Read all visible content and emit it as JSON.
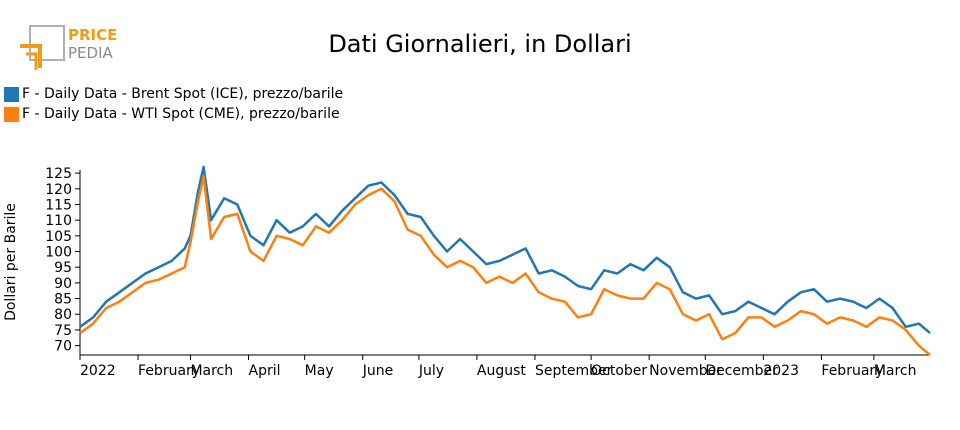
{
  "logo": {
    "line1": "PRICE",
    "line2": "PEDIA",
    "accent_color": "#f39c12",
    "gray_color": "#8a8a8a"
  },
  "title": "Dati Giornalieri, in Dollari",
  "chart_data": {
    "type": "line",
    "title": "Dati Giornalieri, in Dollari",
    "xlabel": "",
    "ylabel": "Dollari per Barile",
    "ylim": [
      67,
      126
    ],
    "yticks": [
      70,
      75,
      80,
      85,
      90,
      95,
      100,
      105,
      110,
      115,
      120,
      125
    ],
    "xlim": [
      "2022-01-01",
      "2023-03-31"
    ],
    "xticks": [
      {
        "date": "2022-01-01",
        "label": "2022"
      },
      {
        "date": "2022-02-01",
        "label": "February"
      },
      {
        "date": "2022-03-01",
        "label": "March"
      },
      {
        "date": "2022-04-01",
        "label": "April"
      },
      {
        "date": "2022-05-01",
        "label": "May"
      },
      {
        "date": "2022-06-01",
        "label": "June"
      },
      {
        "date": "2022-07-01",
        "label": "July"
      },
      {
        "date": "2022-08-01",
        "label": "August"
      },
      {
        "date": "2022-09-01",
        "label": "September"
      },
      {
        "date": "2022-10-01",
        "label": "October"
      },
      {
        "date": "2022-11-01",
        "label": "November"
      },
      {
        "date": "2022-12-01",
        "label": "December"
      },
      {
        "date": "2023-01-01",
        "label": "2023"
      },
      {
        "date": "2023-02-01",
        "label": "February"
      },
      {
        "date": "2023-03-01",
        "label": "March"
      }
    ],
    "grid": false,
    "legend_position": "top-left",
    "series": [
      {
        "name": "F - Daily Data - Brent Spot (ICE), prezzo/barile",
        "color": "#1f77b4",
        "x": [
          "2022-01-01",
          "2022-01-08",
          "2022-01-15",
          "2022-01-22",
          "2022-01-29",
          "2022-02-05",
          "2022-02-12",
          "2022-02-19",
          "2022-02-26",
          "2022-03-01",
          "2022-03-05",
          "2022-03-08",
          "2022-03-12",
          "2022-03-19",
          "2022-03-26",
          "2022-04-02",
          "2022-04-09",
          "2022-04-16",
          "2022-04-23",
          "2022-04-30",
          "2022-05-07",
          "2022-05-14",
          "2022-05-21",
          "2022-05-28",
          "2022-06-04",
          "2022-06-11",
          "2022-06-18",
          "2022-06-25",
          "2022-07-02",
          "2022-07-09",
          "2022-07-16",
          "2022-07-23",
          "2022-07-30",
          "2022-08-06",
          "2022-08-13",
          "2022-08-20",
          "2022-08-27",
          "2022-09-03",
          "2022-09-10",
          "2022-09-17",
          "2022-09-24",
          "2022-10-01",
          "2022-10-08",
          "2022-10-15",
          "2022-10-22",
          "2022-10-29",
          "2022-11-05",
          "2022-11-12",
          "2022-11-19",
          "2022-11-26",
          "2022-12-03",
          "2022-12-10",
          "2022-12-17",
          "2022-12-24",
          "2022-12-31",
          "2023-01-07",
          "2023-01-14",
          "2023-01-21",
          "2023-01-28",
          "2023-02-04",
          "2023-02-11",
          "2023-02-18",
          "2023-02-25",
          "2023-03-04",
          "2023-03-11",
          "2023-03-18",
          "2023-03-25",
          "2023-03-31"
        ],
        "values": [
          76,
          79,
          84,
          87,
          90,
          93,
          95,
          97,
          101,
          105,
          119,
          127,
          110,
          117,
          115,
          105,
          102,
          110,
          106,
          108,
          112,
          108,
          113,
          117,
          121,
          122,
          118,
          112,
          111,
          105,
          100,
          104,
          100,
          96,
          97,
          99,
          101,
          93,
          94,
          92,
          89,
          88,
          94,
          93,
          96,
          94,
          98,
          95,
          87,
          85,
          86,
          80,
          81,
          84,
          82,
          80,
          84,
          87,
          88,
          84,
          85,
          84,
          82,
          85,
          82,
          76,
          77,
          74
        ]
      },
      {
        "name": "F - Daily Data - WTI Spot (CME), prezzo/barile",
        "color": "#ff7f0e",
        "x": [
          "2022-01-01",
          "2022-01-08",
          "2022-01-15",
          "2022-01-22",
          "2022-01-29",
          "2022-02-05",
          "2022-02-12",
          "2022-02-19",
          "2022-02-26",
          "2022-03-01",
          "2022-03-05",
          "2022-03-08",
          "2022-03-12",
          "2022-03-19",
          "2022-03-26",
          "2022-04-02",
          "2022-04-09",
          "2022-04-16",
          "2022-04-23",
          "2022-04-30",
          "2022-05-07",
          "2022-05-14",
          "2022-05-21",
          "2022-05-28",
          "2022-06-04",
          "2022-06-11",
          "2022-06-18",
          "2022-06-25",
          "2022-07-02",
          "2022-07-09",
          "2022-07-16",
          "2022-07-23",
          "2022-07-30",
          "2022-08-06",
          "2022-08-13",
          "2022-08-20",
          "2022-08-27",
          "2022-09-03",
          "2022-09-10",
          "2022-09-17",
          "2022-09-24",
          "2022-10-01",
          "2022-10-08",
          "2022-10-15",
          "2022-10-22",
          "2022-10-29",
          "2022-11-05",
          "2022-11-12",
          "2022-11-19",
          "2022-11-26",
          "2022-12-03",
          "2022-12-10",
          "2022-12-17",
          "2022-12-24",
          "2022-12-31",
          "2023-01-07",
          "2023-01-14",
          "2023-01-21",
          "2023-01-28",
          "2023-02-04",
          "2023-02-11",
          "2023-02-18",
          "2023-02-25",
          "2023-03-04",
          "2023-03-11",
          "2023-03-18",
          "2023-03-25",
          "2023-03-31"
        ],
        "values": [
          74,
          77,
          82,
          84,
          87,
          90,
          91,
          93,
          95,
          103,
          116,
          124,
          104,
          111,
          112,
          100,
          97,
          105,
          104,
          102,
          108,
          106,
          110,
          115,
          118,
          120,
          116,
          107,
          105,
          99,
          95,
          97,
          95,
          90,
          92,
          90,
          93,
          87,
          85,
          84,
          79,
          80,
          88,
          86,
          85,
          85,
          90,
          88,
          80,
          78,
          80,
          72,
          74,
          79,
          79,
          76,
          78,
          81,
          80,
          77,
          79,
          78,
          76,
          79,
          78,
          75,
          70,
          67
        ]
      }
    ]
  }
}
